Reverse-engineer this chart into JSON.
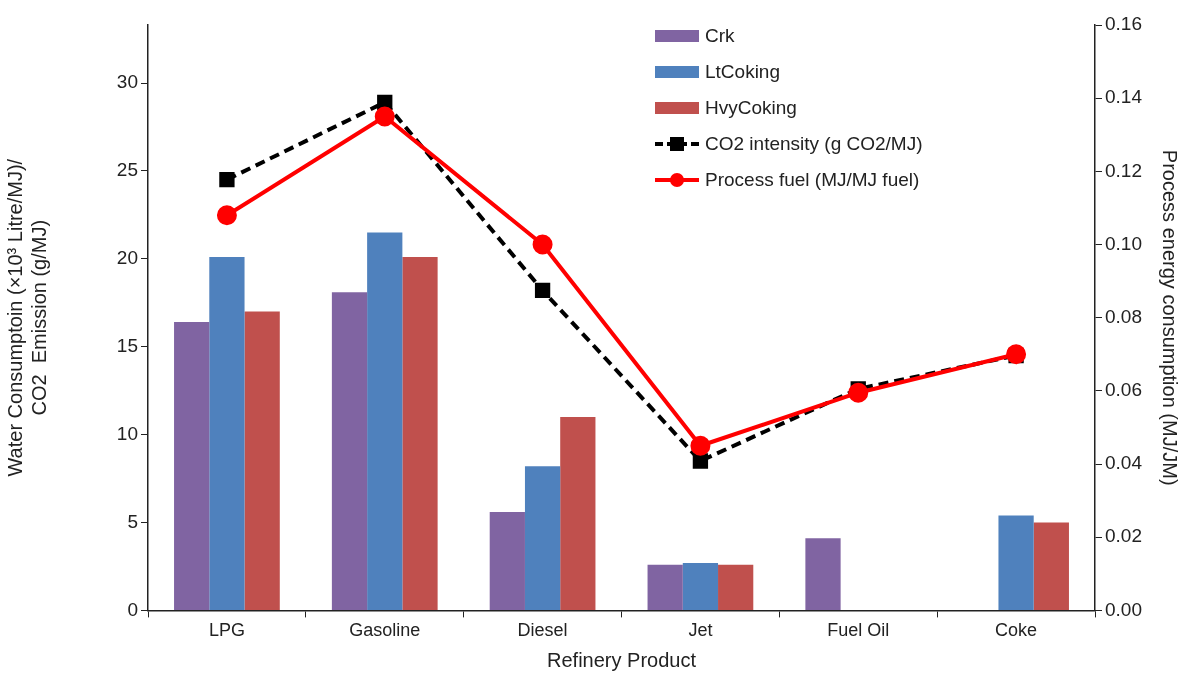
{
  "chart_data": {
    "type": "bar",
    "xlabel": "Refinery Product",
    "ylabel": "Water Consumptoin (×10³ Litre/MJ)/\nCO2  Emission (g/MJ)",
    "y2label": "Process energy consumption (MJ/JM)",
    "categories": [
      "LPG",
      "Gasoline",
      "Diesel",
      "Jet",
      "Fuel Oil",
      "Coke"
    ],
    "series": [
      {
        "name": "Crk",
        "color": "#8064a2",
        "values": [
          16.4,
          18.1,
          5.6,
          2.6,
          4.1,
          null
        ]
      },
      {
        "name": "LtCoking",
        "color": "#4f81bd",
        "values": [
          20.1,
          21.5,
          8.2,
          2.7,
          null,
          5.4
        ]
      },
      {
        "name": "HvyCoking",
        "color": "#c0504d",
        "values": [
          17.0,
          20.1,
          11.0,
          2.6,
          null,
          5.0
        ]
      },
      {
        "name": "CO2 intensity (g CO2/MJ)",
        "type": "line",
        "color": "#000000",
        "marker": "square",
        "line_style": "dashed",
        "values": [
          24.5,
          28.9,
          18.2,
          8.5,
          12.6,
          14.5
        ]
      },
      {
        "name": "Process fuel (MJ/MJ fuel)",
        "type": "line",
        "axis": "y2",
        "color": "#ff0000",
        "marker": "circle",
        "line_style": "solid",
        "values": [
          0.108,
          0.135,
          0.1,
          0.045,
          0.0595,
          0.07
        ]
      }
    ],
    "ylim": [
      0,
      33.3
    ],
    "yticks": [
      0,
      5,
      10,
      15,
      20,
      25,
      30
    ],
    "y2lim": [
      0,
      0.16
    ],
    "y2ticks": [
      {
        "value": 0,
        "label": "0.00"
      },
      {
        "value": 0.02,
        "label": "0.02"
      },
      {
        "value": 0.04,
        "label": "0.04"
      },
      {
        "value": 0.06,
        "label": "0.06"
      },
      {
        "value": 0.08,
        "label": "0.08"
      },
      {
        "value": 0.1,
        "label": "0.10"
      },
      {
        "value": 0.12,
        "label": "0.12"
      },
      {
        "value": 0.14,
        "label": "0.14"
      },
      {
        "value": 0.16,
        "label": "0.16"
      }
    ],
    "grid": false,
    "legend": "top right"
  }
}
